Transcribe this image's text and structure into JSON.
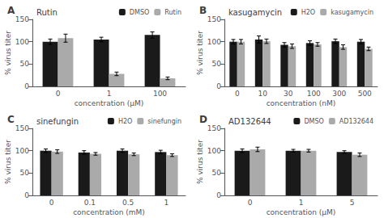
{
  "chart_data": [
    {
      "type": "bar",
      "title": "Rutin",
      "annotations": [
        "A"
      ],
      "xlabel": "concentration (μM)",
      "ylabel": "% virus titer",
      "categories": [
        "0",
        "1",
        "100"
      ],
      "series": [
        {
          "name": "DMSO",
          "color": "#1a1a1a",
          "values": [
            100,
            105,
            115
          ],
          "errors": [
            6,
            5,
            7
          ]
        },
        {
          "name": "Rutin",
          "color": "#aaaaaa",
          "values": [
            108,
            28,
            18
          ],
          "errors": [
            9,
            4,
            3
          ]
        }
      ],
      "ylim": [
        0,
        150
      ],
      "yticks": [
        0,
        50,
        100,
        150
      ],
      "grid": false,
      "legend": "upper right"
    },
    {
      "type": "bar",
      "title": "kasugamycin",
      "annotations": [
        "B"
      ],
      "xlabel": "concentration (nM)",
      "ylabel": "% virus titer",
      "categories": [
        "0",
        "10",
        "30",
        "100",
        "300",
        "500"
      ],
      "series": [
        {
          "name": "H2O",
          "color": "#1a1a1a",
          "values": [
            100,
            105,
            93,
            97,
            101,
            100
          ],
          "errors": [
            5,
            8,
            5,
            5,
            5,
            5
          ]
        },
        {
          "name": "kasugamycin",
          "color": "#aaaaaa",
          "values": [
            100,
            101,
            90,
            94,
            88,
            84
          ],
          "errors": [
            5,
            5,
            5,
            4,
            5,
            4
          ]
        }
      ],
      "ylim": [
        0,
        150
      ],
      "yticks": [
        0,
        50,
        100,
        150
      ],
      "grid": false,
      "legend": "upper right"
    },
    {
      "type": "bar",
      "title": "sinefungin",
      "annotations": [
        "C"
      ],
      "xlabel": "concentration (mM)",
      "ylabel": "% virus titer",
      "categories": [
        "0",
        "0.1",
        "0.5",
        "1"
      ],
      "series": [
        {
          "name": "H2O",
          "color": "#1a1a1a",
          "values": [
            100,
            96,
            100,
            97
          ],
          "errors": [
            4,
            4,
            4,
            4
          ]
        },
        {
          "name": "sinefungin",
          "color": "#aaaaaa",
          "values": [
            98,
            93,
            92,
            90
          ],
          "errors": [
            4,
            3,
            3,
            3
          ]
        }
      ],
      "ylim": [
        0,
        150
      ],
      "yticks": [
        0,
        50,
        100,
        150
      ],
      "grid": false,
      "legend": "upper right"
    },
    {
      "type": "bar",
      "title": "AD132644",
      "annotations": [
        "D"
      ],
      "xlabel": "concentration (μM)",
      "ylabel": "% virus titer",
      "categories": [
        "0",
        "1",
        "5"
      ],
      "series": [
        {
          "name": "DMSO",
          "color": "#1a1a1a",
          "values": [
            100,
            100,
            97
          ],
          "errors": [
            4,
            3,
            3
          ]
        },
        {
          "name": "AD132644",
          "color": "#aaaaaa",
          "values": [
            103,
            100,
            91
          ],
          "errors": [
            5,
            3,
            4
          ]
        }
      ],
      "ylim": [
        0,
        150
      ],
      "yticks": [
        0,
        50,
        100,
        150
      ],
      "grid": false,
      "legend": "upper right"
    }
  ]
}
